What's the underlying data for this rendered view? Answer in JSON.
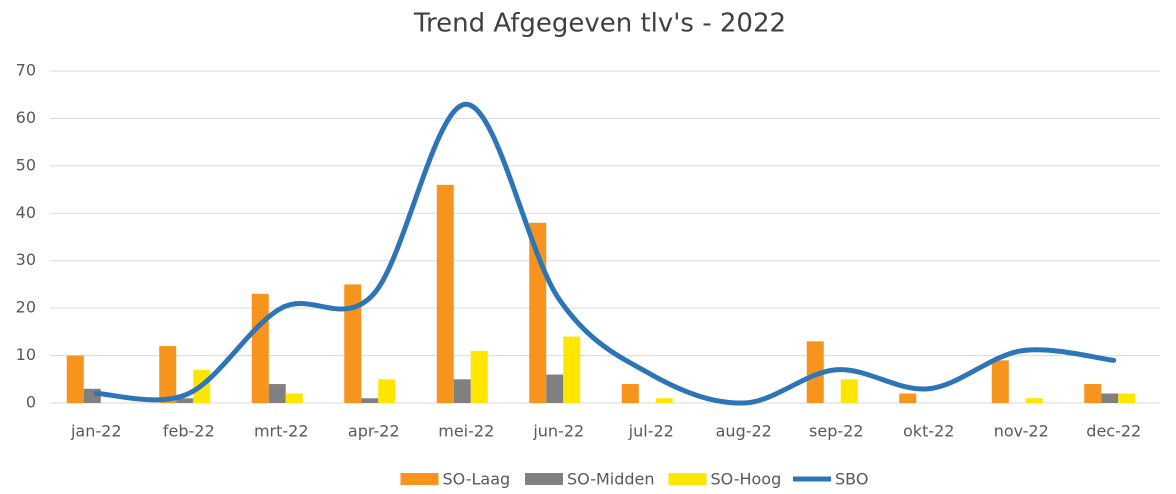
{
  "chart_data": {
    "type": "bar-line",
    "title": "Trend Afgegeven tlv's -  2022",
    "categories": [
      "jan-22",
      "feb-22",
      "mrt-22",
      "apr-22",
      "mei-22",
      "jun-22",
      "jul-22",
      "aug-22",
      "sep-22",
      "okt-22",
      "nov-22",
      "dec-22"
    ],
    "series": [
      {
        "name": "SO-Laag",
        "type": "bar",
        "color": "#f7941d",
        "values": [
          10,
          12,
          23,
          25,
          46,
          38,
          4,
          0,
          13,
          2,
          9,
          4
        ]
      },
      {
        "name": "SO-Midden",
        "type": "bar",
        "color": "#808080",
        "values": [
          3,
          1,
          4,
          1,
          5,
          6,
          0,
          0,
          0,
          0,
          0,
          2
        ]
      },
      {
        "name": "SO-Hoog",
        "type": "bar",
        "color": "#ffe600",
        "values": [
          0,
          7,
          2,
          5,
          11,
          14,
          1,
          0,
          5,
          0,
          1,
          2
        ]
      },
      {
        "name": "SBO",
        "type": "line",
        "smooth": true,
        "color": "#2e75b6",
        "values": [
          2,
          2,
          20,
          23,
          63,
          22,
          6,
          0,
          7,
          3,
          11,
          9
        ]
      }
    ],
    "ylim": [
      0,
      70
    ],
    "yticks": [
      0,
      10,
      20,
      30,
      40,
      50,
      60,
      70
    ],
    "grid": true,
    "legend": "bottom"
  }
}
